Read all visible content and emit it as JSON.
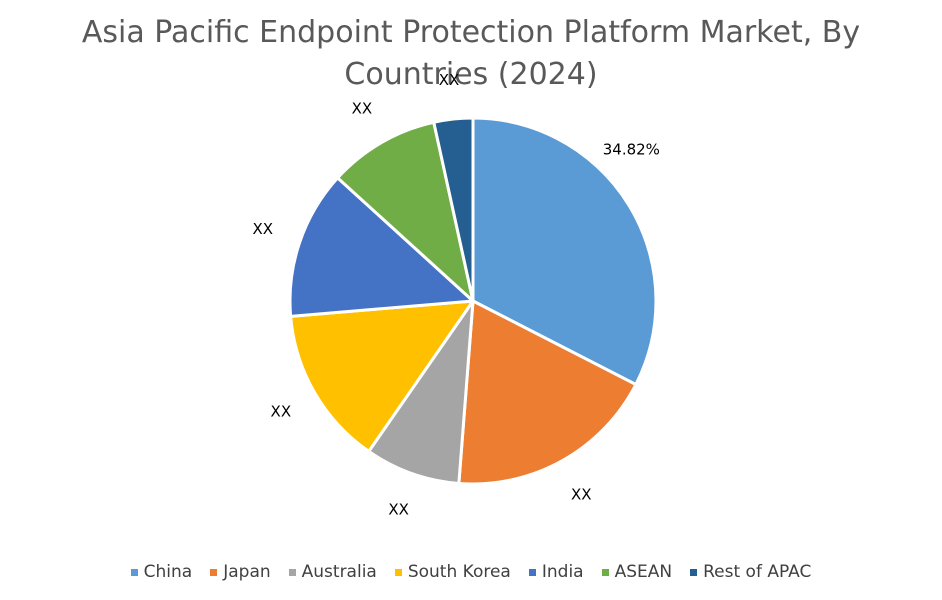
{
  "chart_data": {
    "type": "pie",
    "title": "Asia Pacific Endpoint Protection Platform Market, By Countries (2024)",
    "series": [
      {
        "name": "China",
        "value": 34.82,
        "label": "34.82%",
        "color": "#5B9BD5"
      },
      {
        "name": "Japan",
        "value": 20.0,
        "label": "XX",
        "color": "#ED7D31"
      },
      {
        "name": "Australia",
        "value": 9.0,
        "label": "XX",
        "color": "#A5A5A5"
      },
      {
        "name": "South Korea",
        "value": 15.0,
        "label": "XX",
        "color": "#FFC000"
      },
      {
        "name": "India",
        "value": 14.0,
        "label": "XX",
        "color": "#4472C4"
      },
      {
        "name": "ASEAN",
        "value": 10.5,
        "label": "XX",
        "color": "#70AD47"
      },
      {
        "name": "Rest of APAC",
        "value": 3.68,
        "label": "XX",
        "color": "#255E91"
      }
    ],
    "legend_position": "bottom",
    "start_angle": "12 o'clock, clockwise"
  }
}
